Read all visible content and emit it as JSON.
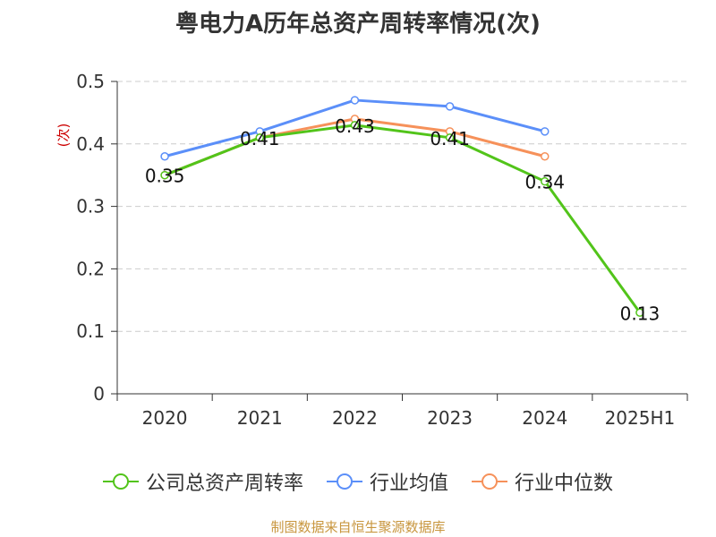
{
  "title": "粤电力A历年总资产周转率情况(次)",
  "source": "制图数据来自恒生聚源数据库",
  "colors": {
    "company": "#52c41a",
    "industry_avg": "#5b8ff9",
    "industry_median": "#f6915a",
    "ylabel": "#cc0000",
    "grid": "#cccccc",
    "axis": "#333333"
  },
  "chart_data": {
    "type": "line",
    "title": "粤电力A历年总资产周转率情况(次)",
    "xlabel": "",
    "ylabel": "(次)",
    "ylim": [
      0,
      0.5
    ],
    "yticks": [
      "0",
      "0.1",
      "0.2",
      "0.3",
      "0.4",
      "0.5"
    ],
    "grid": true,
    "legend_position": "bottom",
    "categories": [
      "2020",
      "2021",
      "2022",
      "2023",
      "2024",
      "2025H1"
    ],
    "series": [
      {
        "name": "公司总资产周转率",
        "key": "company",
        "values": [
          0.35,
          0.41,
          0.43,
          0.41,
          0.34,
          0.13
        ],
        "labels": [
          "0.35",
          "0.41",
          "0.43",
          "0.41",
          "0.34",
          "0.13"
        ]
      },
      {
        "name": "行业均值",
        "key": "industry_avg",
        "values": [
          0.38,
          0.42,
          0.47,
          0.46,
          0.42,
          null
        ]
      },
      {
        "name": "行业中位数",
        "key": "industry_median",
        "values": [
          0.35,
          0.41,
          0.44,
          0.42,
          0.38,
          null
        ]
      }
    ]
  }
}
